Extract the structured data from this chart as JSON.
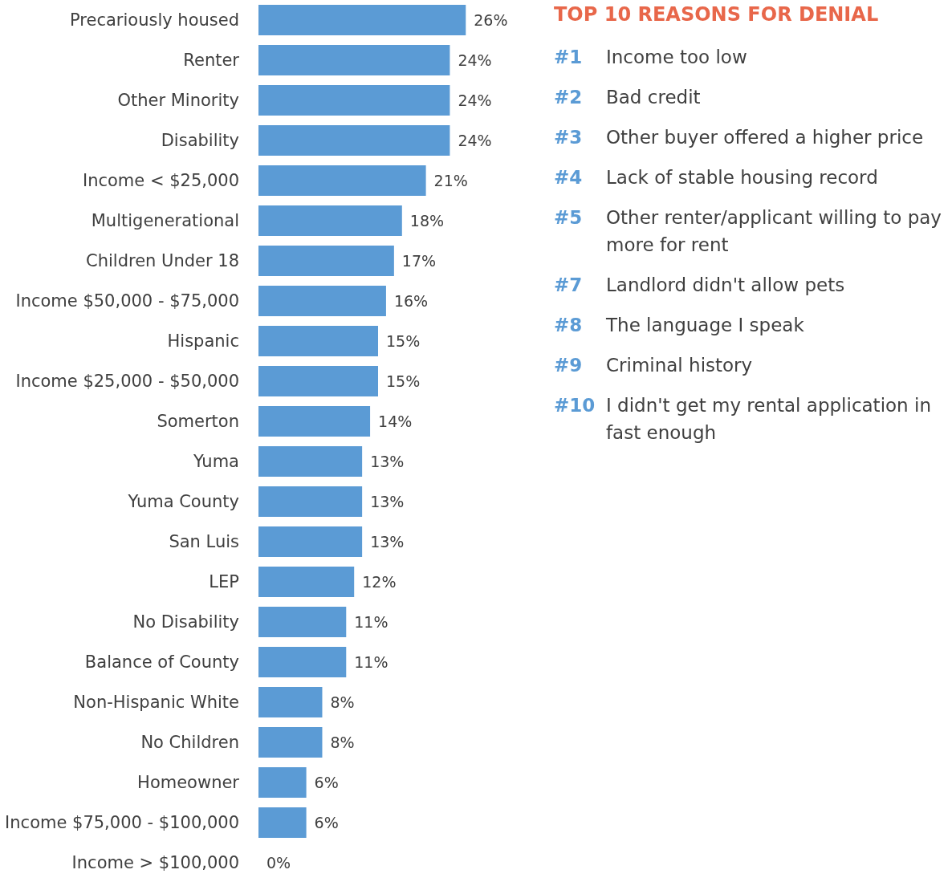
{
  "chart_data": [
    {
      "type": "bar",
      "orientation": "horizontal",
      "color": "#5b9bd5",
      "categories": [
        "Precariously housed",
        "Renter",
        "Other Minority",
        "Disability",
        "Income < $25,000",
        "Multigenerational",
        "Children Under 18",
        "Income $50,000 - $75,000",
        "Hispanic",
        "Income $25,000 - $50,000",
        "Somerton",
        "Yuma",
        "Yuma County",
        "San Luis",
        "LEP",
        "No Disability",
        "Balance of County",
        "Non-Hispanic White",
        "No Children",
        "Homeowner",
        "Income $75,000 - $100,000",
        "Income > $100,000"
      ],
      "values": [
        26,
        24,
        24,
        24,
        21,
        18,
        17,
        16,
        15,
        15,
        14,
        13,
        13,
        13,
        12,
        11,
        11,
        8,
        8,
        6,
        6,
        0
      ],
      "value_labels": [
        "26%",
        "24%",
        "24%",
        "24%",
        "21%",
        "18%",
        "17%",
        "16%",
        "15%",
        "15%",
        "14%",
        "13%",
        "13%",
        "13%",
        "12%",
        "11%",
        "11%",
        "8%",
        "8%",
        "6%",
        "6%",
        "0%"
      ]
    },
    {
      "type": "other",
      "title": "TOP 10 REASONS FOR DENIAL",
      "categories": [
        "#1",
        "#2",
        "#3",
        "#4",
        "#5",
        "#7",
        "#8",
        "#9",
        "#10"
      ],
      "annotations": [
        "Income too low",
        "Bad credit",
        "Other buyer offered a higher price",
        "Lack of stable housing record",
        "Other renter/applicant willing to pay more for rent",
        "Landlord didn't allow pets",
        "The language I speak",
        "Criminal history",
        "I didn't get my rental application in fast enough"
      ]
    }
  ]
}
